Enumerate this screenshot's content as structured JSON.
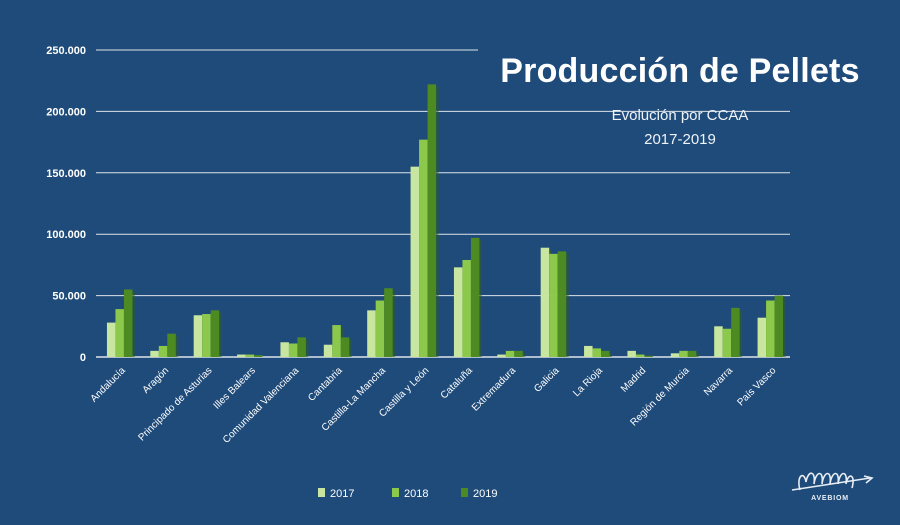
{
  "chart_data": {
    "type": "bar",
    "title": "Producción de Pellets",
    "subtitle_line1": "Evolución por CCAA",
    "subtitle_line2": "2017-2019",
    "xlabel": "",
    "ylabel": "",
    "ylim": [
      0,
      250000
    ],
    "yticks": [
      {
        "value": 0,
        "label": "0"
      },
      {
        "value": 50000,
        "label": "50.000"
      },
      {
        "value": 100000,
        "label": "100.000"
      },
      {
        "value": 150000,
        "label": "150.000"
      },
      {
        "value": 200000,
        "label": "200.000"
      },
      {
        "value": 250000,
        "label": "250.000"
      }
    ],
    "grid": true,
    "legend_position": "bottom",
    "categories": [
      "Andalucía",
      "Aragón",
      "Principado de Asturias",
      "Illes Balears",
      "Comunidad Valenciana",
      "Cantabria",
      "Castilla-La Mancha",
      "Castilla y León",
      "Cataluña",
      "Extremadura",
      "Galicia",
      "La Rioja",
      "Madrid",
      "Región de Murcia",
      "Navarra",
      "País Vasco"
    ],
    "series": [
      {
        "name": "2017",
        "color": "#c8e6a0",
        "values": [
          28000,
          5000,
          34000,
          2000,
          12000,
          10000,
          38000,
          155000,
          73000,
          2000,
          89000,
          9000,
          5000,
          3000,
          25000,
          32000
        ]
      },
      {
        "name": "2018",
        "color": "#8cc84b",
        "values": [
          39000,
          9000,
          35000,
          2000,
          11000,
          26000,
          46000,
          177000,
          79000,
          5000,
          84000,
          7000,
          2000,
          5000,
          23000,
          46000
        ]
      },
      {
        "name": "2019",
        "color": "#4d8a22",
        "values": [
          55000,
          19000,
          38000,
          1500,
          16000,
          16000,
          56000,
          222000,
          97000,
          5000,
          86000,
          5000,
          1000,
          5000,
          40000,
          50000
        ]
      }
    ]
  },
  "logo": {
    "name": "AVEBIOM",
    "icon": "pellets-logo-icon"
  }
}
